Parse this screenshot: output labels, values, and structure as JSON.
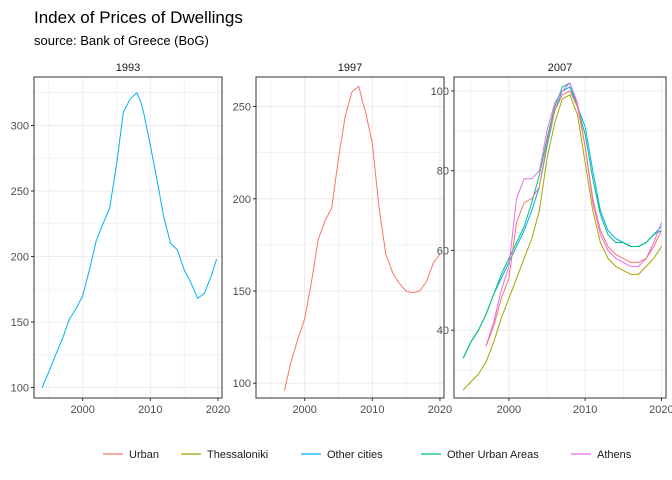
{
  "title": "Index of Prices of Dwellings",
  "subtitle": "source: Bank of Greece (BoG)",
  "colors": {
    "Urban": "#F8766D",
    "Thessaloniki": "#A3A500",
    "Other cities": "#00B0F6",
    "Other Urban Areas": "#00BF7D",
    "Athens": "#E76BF3",
    "grid": "#ebebeb",
    "panel_border": "#333333"
  },
  "chart_data": [
    {
      "type": "line",
      "title": "1993",
      "xlim": [
        1992.8,
        2020.6
      ],
      "ylim": [
        92,
        337
      ],
      "x_ticks": [
        2000,
        2010,
        2020
      ],
      "y_ticks": [
        100,
        150,
        200,
        250,
        300
      ],
      "series": [
        {
          "name": "Other cities",
          "x": [
            1994,
            1995,
            1996,
            1997,
            1998,
            1999,
            2000,
            2001,
            2002,
            2003,
            2004,
            2005,
            2006,
            2007,
            2008,
            2008.6,
            2009,
            2010,
            2011,
            2012,
            2013,
            2014,
            2015,
            2016,
            2017,
            2018,
            2019,
            2019.8
          ],
          "y": [
            100,
            112,
            125,
            137,
            152,
            160,
            170,
            190,
            212,
            225,
            237,
            270,
            310,
            320,
            325,
            318,
            310,
            285,
            258,
            230,
            210,
            205,
            190,
            180,
            168,
            172,
            185,
            198
          ]
        }
      ]
    },
    {
      "type": "line",
      "title": "1997",
      "xlim": [
        1992.8,
        2020.6
      ],
      "ylim": [
        92,
        266
      ],
      "x_ticks": [
        2000,
        2010,
        2020
      ],
      "y_ticks": [
        100,
        150,
        200,
        250
      ],
      "series": [
        {
          "name": "Urban",
          "x": [
            1997,
            1998,
            1999,
            2000,
            2001,
            2002,
            2003,
            2004,
            2005,
            2006,
            2007,
            2008,
            2008.6,
            2009,
            2010,
            2011,
            2012,
            2013,
            2014,
            2015,
            2016,
            2017,
            2018,
            2019,
            2020
          ],
          "y": [
            96,
            112,
            124,
            135,
            155,
            178,
            188,
            195,
            222,
            245,
            258,
            261,
            252,
            247,
            230,
            195,
            170,
            160,
            154,
            150,
            149,
            150,
            155,
            165,
            170
          ]
        }
      ]
    },
    {
      "type": "line",
      "title": "2007",
      "xlim": [
        1992.8,
        2020.6
      ],
      "ylim": [
        23,
        103.5
      ],
      "x_ticks": [
        2000,
        2010,
        2020
      ],
      "y_ticks": [
        40,
        60,
        80,
        100
      ],
      "series": [
        {
          "name": "Thessaloniki",
          "x": [
            1994,
            1995,
            1996,
            1997,
            1998,
            1999,
            2000,
            2001,
            2002,
            2003,
            2004,
            2005,
            2006,
            2007,
            2008,
            2009,
            2010,
            2011,
            2012,
            2013,
            2014,
            2015,
            2016,
            2017,
            2018,
            2019,
            2020
          ],
          "y": [
            25,
            27,
            29,
            32,
            37,
            43,
            48,
            53,
            58,
            63,
            70,
            83,
            92,
            98,
            99,
            94,
            82,
            70,
            62,
            58,
            56,
            55,
            54,
            54,
            56,
            58,
            61
          ]
        },
        {
          "name": "Other cities",
          "x": [
            1994,
            1995,
            1996,
            1997,
            1998,
            1999,
            2000,
            2001,
            2002,
            2003,
            2004,
            2005,
            2006,
            2007,
            2008,
            2009,
            2010,
            2011,
            2012,
            2013,
            2014,
            2015,
            2016,
            2017,
            2018,
            2019,
            2020
          ],
          "y": [
            33,
            37,
            40,
            44,
            49,
            53,
            57,
            61,
            65,
            70,
            76,
            86,
            95,
            100,
            101,
            96,
            91,
            80,
            70,
            65,
            63,
            62,
            61,
            61,
            62,
            64,
            66
          ]
        },
        {
          "name": "Other Urban Areas",
          "x": [
            1994,
            1995,
            1996,
            1997,
            1998,
            1999,
            2000,
            2001,
            2002,
            2003,
            2004,
            2005,
            2006,
            2007,
            2008,
            2009,
            2010,
            2011,
            2012,
            2013,
            2014,
            2015,
            2016,
            2017,
            2018,
            2019,
            2020
          ],
          "y": [
            33,
            37,
            40,
            44,
            49,
            54,
            58,
            62,
            66,
            72,
            79,
            88,
            96,
            101,
            102,
            96,
            89,
            78,
            69,
            64,
            62,
            62,
            61,
            61,
            62,
            64,
            65
          ]
        },
        {
          "name": "Athens",
          "x": [
            1997,
            1998,
            1999,
            2000,
            2001,
            2002,
            2003,
            2004,
            2005,
            2006,
            2007,
            2008,
            2009,
            2010,
            2011,
            2012,
            2013,
            2014,
            2015,
            2016,
            2017,
            2018,
            2019,
            2020
          ],
          "y": [
            36,
            42,
            50,
            56,
            73,
            78,
            78,
            80,
            90,
            97,
            100,
            102,
            97,
            86,
            72,
            64,
            60,
            58,
            57,
            56,
            56,
            58,
            62,
            67
          ]
        },
        {
          "name": "Urban",
          "x": [
            1997,
            1998,
            1999,
            2000,
            2001,
            2002,
            2003,
            2004,
            2005,
            2006,
            2007,
            2008,
            2009,
            2010,
            2011,
            2012,
            2013,
            2014,
            2015,
            2016,
            2017,
            2018,
            2019,
            2020
          ],
          "y": [
            36,
            41,
            48,
            53,
            67,
            72,
            73,
            76,
            87,
            95,
            99,
            100,
            96,
            86,
            73,
            65,
            61,
            59,
            58,
            57,
            57,
            58,
            61,
            65
          ]
        }
      ]
    }
  ],
  "legend": {
    "position": "bottom",
    "items": [
      "Urban",
      "Thessaloniki",
      "Other cities",
      "Other Urban Areas",
      "Athens"
    ]
  }
}
